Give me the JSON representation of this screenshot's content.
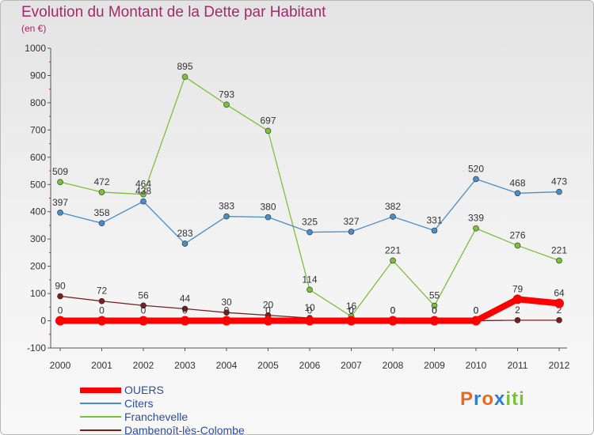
{
  "header": {
    "title": "Evolution du Montant de la Dette par Habitant",
    "unit": "(en €)"
  },
  "logo": {
    "letters": [
      "P",
      "r",
      "o",
      "x",
      "i",
      "t",
      "i"
    ],
    "colors": [
      "#e86a1c",
      "#2a7fd4",
      "#e86a1c",
      "#2a7fd4",
      "#7cc13a",
      "#7cc13a",
      "#7cc13a"
    ]
  },
  "chart_data": {
    "type": "line",
    "title": "Evolution du Montant de la Dette par Habitant",
    "ylabel": "(en €)",
    "xlabel": "",
    "categories": [
      "2000",
      "2001",
      "2002",
      "2003",
      "2004",
      "2005",
      "2006",
      "2007",
      "2008",
      "2009",
      "2010",
      "2011",
      "2012"
    ],
    "ylim": [
      -100,
      1000
    ],
    "yticks": [
      -100,
      0,
      100,
      200,
      300,
      400,
      500,
      600,
      700,
      800,
      900,
      1000
    ],
    "grid": false,
    "legend_position": "bottom-left",
    "series": [
      {
        "name": "Dambenoît-lès-Colombe",
        "color": "#7a1e1e",
        "values": [
          90,
          72,
          56,
          44,
          30,
          20,
          10,
          0,
          0,
          0,
          0,
          2,
          2
        ],
        "labels": [
          "90",
          "72",
          "56",
          "44",
          "30",
          "20",
          "10",
          "0",
          "0",
          "0",
          "0",
          "2",
          "2"
        ]
      },
      {
        "name": "Franchevelle",
        "color": "#7cc13a",
        "values": [
          509,
          472,
          464,
          895,
          793,
          697,
          114,
          16,
          221,
          55,
          339,
          276,
          221
        ],
        "labels": [
          "509",
          "472",
          "464",
          "895",
          "793",
          "697",
          "114",
          "16",
          "221",
          "55",
          "339",
          "276",
          "221"
        ]
      },
      {
        "name": "Citers",
        "color": "#4a8ec8",
        "values": [
          397,
          358,
          438,
          283,
          383,
          380,
          325,
          327,
          382,
          331,
          520,
          468,
          473
        ],
        "labels": [
          "397",
          "358",
          "438",
          "283",
          "383",
          "380",
          "325",
          "327",
          "382",
          "331",
          "520",
          "468",
          "473"
        ]
      },
      {
        "name": "OUERS",
        "color": "#ff0000",
        "values": [
          0,
          0,
          0,
          0,
          0,
          0,
          0,
          0,
          0,
          0,
          0,
          79,
          64
        ],
        "labels": [
          "0",
          "0",
          "0",
          "0",
          "0",
          "0",
          "0",
          "0",
          "0",
          "0",
          "0",
          "79",
          "64"
        ]
      }
    ],
    "legend_order": [
      "OUERS",
      "Citers",
      "Franchevelle",
      "Dambenoît-lès-Colombe"
    ]
  }
}
